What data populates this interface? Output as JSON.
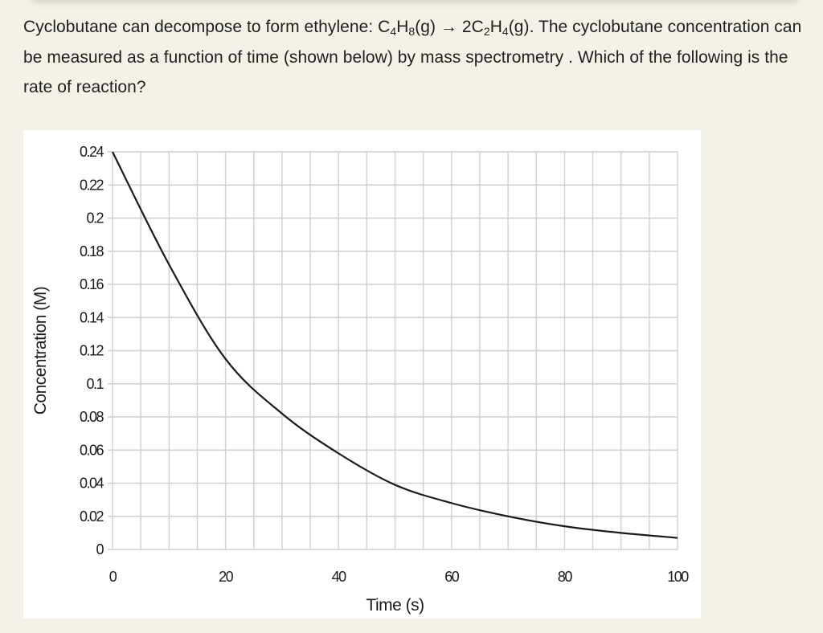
{
  "question": {
    "part1": "Cyclobutane can decompose to form ethylene: C",
    "sub1": "4",
    "part2": "H",
    "sub2": "8",
    "part3": "(g) → 2C",
    "sub3": "2",
    "part4": "H",
    "sub4": "4",
    "part5": "(g). The cyclobutane concentration can be measured as a function of time (shown below) by mass spectrometry . Which of the following is the rate of reaction?"
  },
  "colors": {
    "page_background": "#f4f2e8",
    "chart_background": "#ffffff",
    "grid": "#cfcfcf",
    "curve": "#1a1a1a",
    "text": "#1f1f1f"
  },
  "chart_data": {
    "type": "line",
    "title": "",
    "xlabel": "Time (s)",
    "ylabel": "Concentration (M)",
    "xlim": [
      0,
      100
    ],
    "ylim": [
      0,
      0.24
    ],
    "x_ticks": [
      0,
      20,
      40,
      60,
      80,
      100
    ],
    "x_tick_labels": [
      "0",
      "20",
      "40",
      "60",
      "80",
      "100"
    ],
    "y_ticks": [
      0,
      0.02,
      0.04,
      0.06,
      0.08,
      0.1,
      0.12,
      0.14,
      0.16,
      0.18,
      0.2,
      0.22,
      0.24
    ],
    "y_tick_labels": [
      "0",
      "0.02",
      "0.04",
      "0.06",
      "0.08",
      "0.1",
      "0.12",
      "0.14",
      "0.16",
      "0.18",
      "0.2",
      "0.22",
      "0.24"
    ],
    "grid": true,
    "x_grid_step": 5,
    "y_grid_step": 0.02,
    "legend": null,
    "series": [
      {
        "name": "Cyclobutane concentration",
        "x": [
          0,
          10,
          20,
          30,
          40,
          50,
          60,
          70,
          80,
          90,
          100
        ],
        "values": [
          0.24,
          0.172,
          0.115,
          0.082,
          0.058,
          0.039,
          0.028,
          0.02,
          0.014,
          0.01,
          0.007
        ]
      }
    ]
  }
}
